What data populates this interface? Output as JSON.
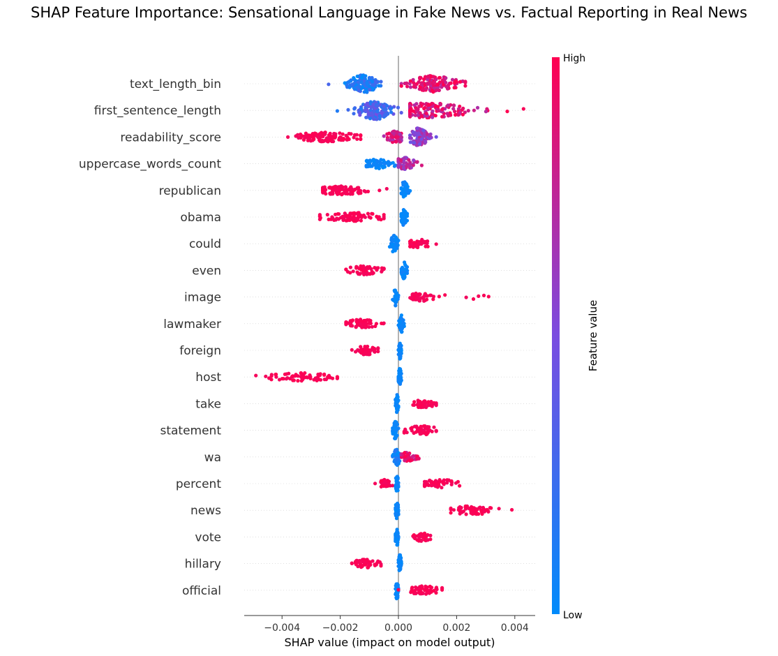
{
  "chart_data": {
    "type": "scatter",
    "subtype": "shap-beeswarm",
    "title": "SHAP Feature Importance: Sensational Language in Fake News vs. Factual Reporting in Real News",
    "xlabel": "SHAP value (impact on model output)",
    "xlim": [
      -0.0053,
      0.0047
    ],
    "xticks": [
      -0.004,
      -0.002,
      0.0,
      0.002,
      0.004
    ],
    "xtick_labels": [
      "−0.004",
      "−0.002",
      "0.000",
      "0.002",
      "0.004"
    ],
    "colorbar": {
      "label": "Feature value",
      "high_label": "High",
      "low_label": "Low",
      "high_color": "#ff0051",
      "mid_color": "#7a4ce0",
      "low_color": "#008bfb"
    },
    "features": [
      {
        "name": "text_length_bin",
        "clusters": [
          {
            "min": -0.0024,
            "max": -0.0006,
            "center": -0.0012,
            "spread": 0.00028,
            "n": 140,
            "high": 0.12,
            "thick": 0.9
          },
          {
            "min": 0.0001,
            "max": 0.0023,
            "center": 0.0012,
            "spread": 0.00045,
            "n": 150,
            "high": 0.9,
            "thick": 0.8
          }
        ]
      },
      {
        "name": "first_sentence_length",
        "clusters": [
          {
            "min": -0.0021,
            "max": 0.0001,
            "center": -0.0008,
            "spread": 0.00035,
            "n": 140,
            "high": 0.3,
            "thick": 0.9
          },
          {
            "min": 0.0004,
            "max": 0.0043,
            "center": 0.0009,
            "spread": 0.0009,
            "n": 170,
            "high": 0.85,
            "thick": 0.7
          }
        ]
      },
      {
        "name": "readability_score",
        "clusters": [
          {
            "min": -0.0038,
            "max": -0.0013,
            "center": -0.0025,
            "spread": 0.0006,
            "n": 110,
            "high": 1.0,
            "thick": 0.35
          },
          {
            "min": -0.0005,
            "max": 0.0001,
            "center": -0.0001,
            "spread": 0.00015,
            "n": 60,
            "high": 0.8,
            "thick": 0.6
          },
          {
            "min": 0.0004,
            "max": 0.0013,
            "center": 0.0007,
            "spread": 0.0002,
            "n": 90,
            "high": 0.6,
            "thick": 0.9
          }
        ]
      },
      {
        "name": "uppercase_words_count",
        "clusters": [
          {
            "min": -0.0011,
            "max": -0.0001,
            "center": -0.0007,
            "spread": 0.00025,
            "n": 60,
            "high": 0.0,
            "thick": 0.35
          },
          {
            "min": 0.0,
            "max": 0.0008,
            "center": 0.0002,
            "spread": 0.0002,
            "n": 60,
            "high": 0.7,
            "thick": 0.55
          }
        ]
      },
      {
        "name": "republican",
        "clusters": [
          {
            "min": -0.0026,
            "max": -0.0004,
            "center": -0.0019,
            "spread": 0.0005,
            "n": 90,
            "high": 1.0,
            "thick": 0.3
          },
          {
            "min": 0.0001,
            "max": 0.0004,
            "center": 0.0002,
            "spread": 8e-05,
            "n": 40,
            "high": 0.0,
            "thick": 0.9
          }
        ]
      },
      {
        "name": "obama",
        "clusters": [
          {
            "min": -0.0027,
            "max": -0.0005,
            "center": -0.0015,
            "spread": 0.0005,
            "n": 90,
            "high": 1.0,
            "thick": 0.3
          },
          {
            "min": 0.0001,
            "max": 0.0003,
            "center": 0.0002,
            "spread": 6e-05,
            "n": 40,
            "high": 0.0,
            "thick": 0.9
          }
        ]
      },
      {
        "name": "could",
        "clusters": [
          {
            "min": -0.0003,
            "max": 0.0,
            "center": -0.00015,
            "spread": 7e-05,
            "n": 45,
            "high": 0.0,
            "thick": 0.9
          },
          {
            "min": 0.0004,
            "max": 0.0013,
            "center": 0.0007,
            "spread": 0.0002,
            "n": 45,
            "high": 1.0,
            "thick": 0.3
          }
        ]
      },
      {
        "name": "even",
        "clusters": [
          {
            "min": -0.0018,
            "max": -0.0005,
            "center": -0.0012,
            "spread": 0.0003,
            "n": 60,
            "high": 1.0,
            "thick": 0.3
          },
          {
            "min": 0.0001,
            "max": 0.0003,
            "center": 0.0002,
            "spread": 5e-05,
            "n": 40,
            "high": 0.0,
            "thick": 0.9
          }
        ]
      },
      {
        "name": "image",
        "clusters": [
          {
            "min": -0.0002,
            "max": 0.0,
            "center": -0.0001,
            "spread": 4e-05,
            "n": 40,
            "high": 0.0,
            "thick": 0.9
          },
          {
            "min": 0.0004,
            "max": 0.0014,
            "center": 0.0008,
            "spread": 0.0002,
            "n": 45,
            "high": 1.0,
            "thick": 0.3
          },
          {
            "min": 0.0016,
            "max": 0.0031,
            "center": 0.0025,
            "spread": 0.0004,
            "n": 6,
            "high": 1.0,
            "thick": 0.1
          }
        ]
      },
      {
        "name": "lawmaker",
        "clusters": [
          {
            "min": -0.0018,
            "max": -0.0005,
            "center": -0.0013,
            "spread": 0.0003,
            "n": 60,
            "high": 1.0,
            "thick": 0.3
          },
          {
            "min": 0.0,
            "max": 0.0002,
            "center": 0.0001,
            "spread": 4e-05,
            "n": 40,
            "high": 0.0,
            "thick": 0.9
          }
        ]
      },
      {
        "name": "foreign",
        "clusters": [
          {
            "min": -0.0016,
            "max": -0.0007,
            "center": -0.0011,
            "spread": 0.0002,
            "n": 50,
            "high": 1.0,
            "thick": 0.3
          },
          {
            "min": 0.0,
            "max": 0.0001,
            "center": 5e-05,
            "spread": 3e-05,
            "n": 40,
            "high": 0.0,
            "thick": 0.9
          }
        ]
      },
      {
        "name": "host",
        "clusters": [
          {
            "min": -0.0049,
            "max": -0.0021,
            "center": -0.0033,
            "spread": 0.0006,
            "n": 70,
            "high": 1.0,
            "thick": 0.25
          },
          {
            "min": 0.0,
            "max": 0.0001,
            "center": 5e-05,
            "spread": 3e-05,
            "n": 40,
            "high": 0.0,
            "thick": 0.9
          }
        ]
      },
      {
        "name": "take",
        "clusters": [
          {
            "min": -0.0001,
            "max": 0.0,
            "center": -5e-05,
            "spread": 3e-05,
            "n": 40,
            "high": 0.0,
            "thick": 0.9
          },
          {
            "min": 0.0005,
            "max": 0.0013,
            "center": 0.0009,
            "spread": 0.0002,
            "n": 45,
            "high": 1.0,
            "thick": 0.3
          }
        ]
      },
      {
        "name": "statement",
        "clusters": [
          {
            "min": -0.0002,
            "max": 0.0,
            "center": -0.0001,
            "spread": 5e-05,
            "n": 45,
            "high": 0.0,
            "thick": 0.9
          },
          {
            "min": 0.0002,
            "max": 0.0013,
            "center": 0.0008,
            "spread": 0.0003,
            "n": 50,
            "high": 1.0,
            "thick": 0.3
          }
        ]
      },
      {
        "name": "wa",
        "clusters": [
          {
            "min": -0.0002,
            "max": 0.0001,
            "center": -5e-05,
            "spread": 6e-05,
            "n": 45,
            "high": 0.05,
            "thick": 0.9
          },
          {
            "min": 0.0001,
            "max": 0.0007,
            "center": 0.0003,
            "spread": 0.00015,
            "n": 40,
            "high": 0.9,
            "thick": 0.35
          }
        ]
      },
      {
        "name": "percent",
        "clusters": [
          {
            "min": -0.0008,
            "max": -0.0002,
            "center": -0.0005,
            "spread": 0.00012,
            "n": 25,
            "high": 1.0,
            "thick": 0.25
          },
          {
            "min": -0.0001,
            "max": 0.0,
            "center": -5e-05,
            "spread": 3e-05,
            "n": 40,
            "high": 0.0,
            "thick": 0.9
          },
          {
            "min": 0.0009,
            "max": 0.0021,
            "center": 0.0014,
            "spread": 0.0003,
            "n": 50,
            "high": 1.0,
            "thick": 0.3
          }
        ]
      },
      {
        "name": "news",
        "clusters": [
          {
            "min": -0.0001,
            "max": 0.0,
            "center": -5e-05,
            "spread": 3e-05,
            "n": 40,
            "high": 0.0,
            "thick": 0.9
          },
          {
            "min": 0.0018,
            "max": 0.0039,
            "center": 0.0025,
            "spread": 0.0004,
            "n": 60,
            "high": 1.0,
            "thick": 0.3
          }
        ]
      },
      {
        "name": "vote",
        "clusters": [
          {
            "min": -0.0001,
            "max": 0.0,
            "center": -5e-05,
            "spread": 3e-05,
            "n": 40,
            "high": 0.0,
            "thick": 0.9
          },
          {
            "min": 0.0005,
            "max": 0.0011,
            "center": 0.0008,
            "spread": 0.00015,
            "n": 40,
            "high": 1.0,
            "thick": 0.3
          }
        ]
      },
      {
        "name": "hillary",
        "clusters": [
          {
            "min": -0.0016,
            "max": -0.0006,
            "center": -0.0011,
            "spread": 0.00025,
            "n": 55,
            "high": 1.0,
            "thick": 0.3
          },
          {
            "min": 0.0,
            "max": 0.0001,
            "center": 5e-05,
            "spread": 3e-05,
            "n": 40,
            "high": 0.0,
            "thick": 0.9
          }
        ]
      },
      {
        "name": "official",
        "clusters": [
          {
            "min": -0.0001,
            "max": 0.0,
            "center": -5e-05,
            "spread": 3e-05,
            "n": 40,
            "high": 0.0,
            "thick": 0.9
          },
          {
            "min": 0.0,
            "max": 0.0015,
            "center": 0.0009,
            "spread": 0.0003,
            "n": 55,
            "high": 1.0,
            "thick": 0.3
          }
        ]
      }
    ]
  }
}
